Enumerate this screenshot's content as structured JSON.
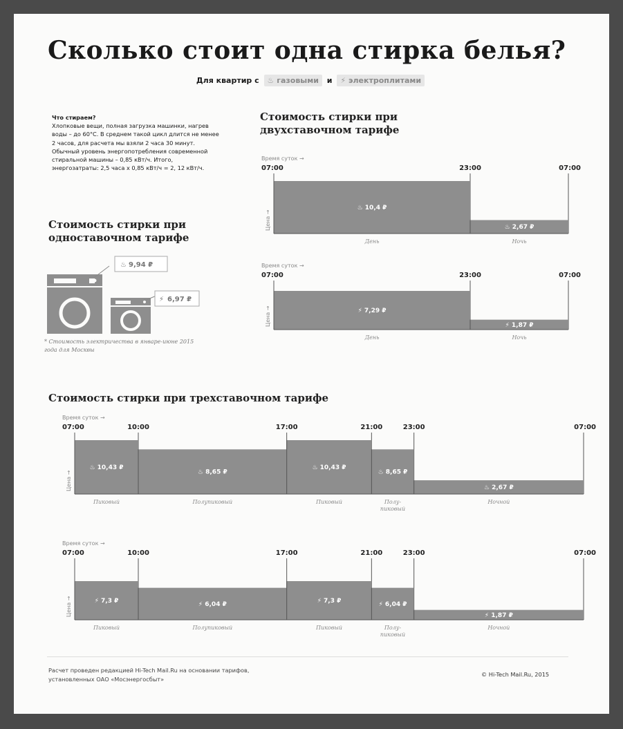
{
  "title": "Сколько стоит одна стирка белья?",
  "subtitle": {
    "prefix": "Для квартир с",
    "gas_chip": "газовыми",
    "conjunction": "и",
    "electric_chip": "электроплитами"
  },
  "intro": {
    "heading": "Что стираем?",
    "body": "Хлопковые вещи, полная загрузка машинки, нагрев воды – до 60°С. В среднем такой цикл длится не менее 2 часов, для расчета мы взяли 2 часа 30 минут. Обычный уровень энергопотребления современной стиральной машины – 0,85 кВт/ч. Итого, энергозатраты: 2,5 часа х 0,85 кВт/ч = 2, 12 кВт/ч."
  },
  "section_two_title": "Стоимость стирки при двухставочном тарифе",
  "section_one_title": "Стоимость стирки при одноставочном тарифе",
  "section_one_asterisk": "*",
  "section_three_title": "Стоимость стирки при трехставочном тарифе",
  "footnote": "* Стоимость электричества в январе-июне 2015 года для Москвы",
  "credit_left": [
    "Расчет проведен редакцией Hi-Tech Mail.Ru на основании тарифов,",
    "установленных ОАО «Мосэнергосбыт»"
  ],
  "credit_right": "© Hi-Tech Mail.Ru, 2015",
  "icons": {
    "gas": "flame-icon",
    "electric": "lightning-icon",
    "washer": "washing-machine-icon"
  },
  "colors": {
    "bar": "#8e8e8e",
    "background": "#fbfbfa",
    "frame": "#4a4a4a"
  },
  "chart_data": [
    {
      "id": "single-rate",
      "type": "bar",
      "title": "Стоимость стирки при одноставочном тарифе",
      "series": [
        {
          "name": "газовыми",
          "icon": "flame-icon",
          "value_label": "9,94 ₽",
          "value": 9.94
        },
        {
          "name": "электроплитами",
          "icon": "lightning-icon",
          "value_label": "6,97 ₽",
          "value": 6.97
        }
      ]
    },
    {
      "id": "two-rate-gas",
      "type": "bar",
      "axis_title": "Время суток →",
      "ylabel": "Цена →",
      "icon": "flame-icon",
      "ticks": [
        "07:00",
        "23:00",
        "07:00"
      ],
      "segments": [
        {
          "start": 7,
          "end": 23,
          "value": 10.4,
          "value_label": "10,4 ₽",
          "category": "День"
        },
        {
          "start": 23,
          "end": 31,
          "value": 2.67,
          "value_label": "2,67 ₽",
          "category": "Ночь"
        }
      ]
    },
    {
      "id": "two-rate-electric",
      "type": "bar",
      "axis_title": "Время суток →",
      "ylabel": "Цена →",
      "icon": "lightning-icon",
      "ticks": [
        "07:00",
        "23:00",
        "07:00"
      ],
      "segments": [
        {
          "start": 7,
          "end": 23,
          "value": 7.29,
          "value_label": "7,29 ₽",
          "category": "День"
        },
        {
          "start": 23,
          "end": 31,
          "value": 1.87,
          "value_label": "1,87 ₽",
          "category": "Ночь"
        }
      ]
    },
    {
      "id": "three-rate-gas",
      "type": "bar",
      "axis_title": "Время суток →",
      "ylabel": "Цена →",
      "icon": "flame-icon",
      "ticks": [
        "07:00",
        "10:00",
        "17:00",
        "21:00",
        "23:00",
        "07:00"
      ],
      "segments": [
        {
          "start": 7,
          "end": 10,
          "value": 10.43,
          "value_label": "10,43 ₽",
          "category": "Пиковый"
        },
        {
          "start": 10,
          "end": 17,
          "value": 8.65,
          "value_label": "8,65 ₽",
          "category": "Полупиковый"
        },
        {
          "start": 17,
          "end": 21,
          "value": 10.43,
          "value_label": "10,43 ₽",
          "category": "Пиковый"
        },
        {
          "start": 21,
          "end": 23,
          "value": 8.65,
          "value_label": "8,65 ₽",
          "category": "Полу-пиковый"
        },
        {
          "start": 23,
          "end": 31,
          "value": 2.67,
          "value_label": "2,67 ₽",
          "category": "Ночной"
        }
      ]
    },
    {
      "id": "three-rate-electric",
      "type": "bar",
      "axis_title": "Время суток →",
      "ylabel": "Цена →",
      "icon": "lightning-icon",
      "ticks": [
        "07:00",
        "10:00",
        "17:00",
        "21:00",
        "23:00",
        "07:00"
      ],
      "segments": [
        {
          "start": 7,
          "end": 10,
          "value": 7.3,
          "value_label": "7,3 ₽",
          "category": "Пиковый"
        },
        {
          "start": 10,
          "end": 17,
          "value": 6.04,
          "value_label": "6,04 ₽",
          "category": "Полупиковый"
        },
        {
          "start": 17,
          "end": 21,
          "value": 7.3,
          "value_label": "7,3 ₽",
          "category": "Пиковый"
        },
        {
          "start": 21,
          "end": 23,
          "value": 6.04,
          "value_label": "6,04 ₽",
          "category": "Полу-пиковый"
        },
        {
          "start": 23,
          "end": 31,
          "value": 1.87,
          "value_label": "1,87 ₽",
          "category": "Ночной"
        }
      ]
    }
  ]
}
